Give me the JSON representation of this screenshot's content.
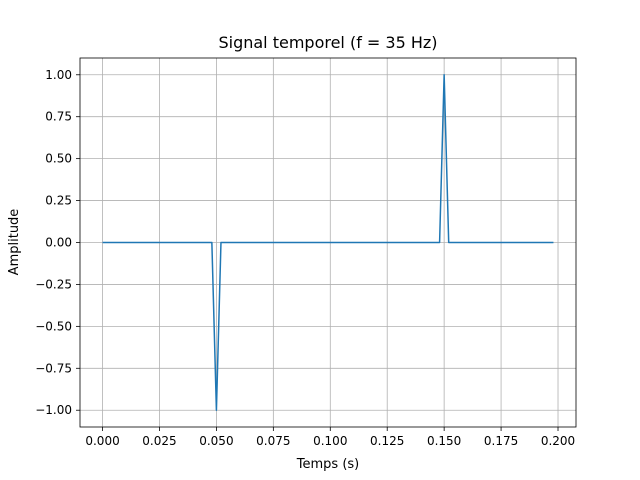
{
  "chart_data": {
    "type": "line",
    "title": "Signal temporel (f = 35 Hz)",
    "xlabel": "Temps (s)",
    "ylabel": "Amplitude",
    "xlim": [
      -0.0099,
      0.2079
    ],
    "ylim": [
      -1.1,
      1.1
    ],
    "grid": true,
    "x_ticks": [
      0.0,
      0.025,
      0.05,
      0.075,
      0.1,
      0.125,
      0.15,
      0.175,
      0.2
    ],
    "x_tick_labels": [
      "0.000",
      "0.025",
      "0.050",
      "0.075",
      "0.100",
      "0.125",
      "0.150",
      "0.175",
      "0.200"
    ],
    "y_ticks": [
      -1.0,
      -0.75,
      -0.5,
      -0.25,
      0.0,
      0.25,
      0.5,
      0.75,
      1.0
    ],
    "y_tick_labels": [
      "−1.00",
      "−0.75",
      "−0.50",
      "−0.25",
      "0.00",
      "0.25",
      "0.50",
      "0.75",
      "1.00"
    ],
    "series": [
      {
        "color": "#1f77b4",
        "x": [
          0.0,
          0.048,
          0.05,
          0.052,
          0.148,
          0.15,
          0.152,
          0.198
        ],
        "y": [
          0,
          0,
          -1,
          0,
          0,
          1,
          0,
          0
        ]
      }
    ]
  }
}
